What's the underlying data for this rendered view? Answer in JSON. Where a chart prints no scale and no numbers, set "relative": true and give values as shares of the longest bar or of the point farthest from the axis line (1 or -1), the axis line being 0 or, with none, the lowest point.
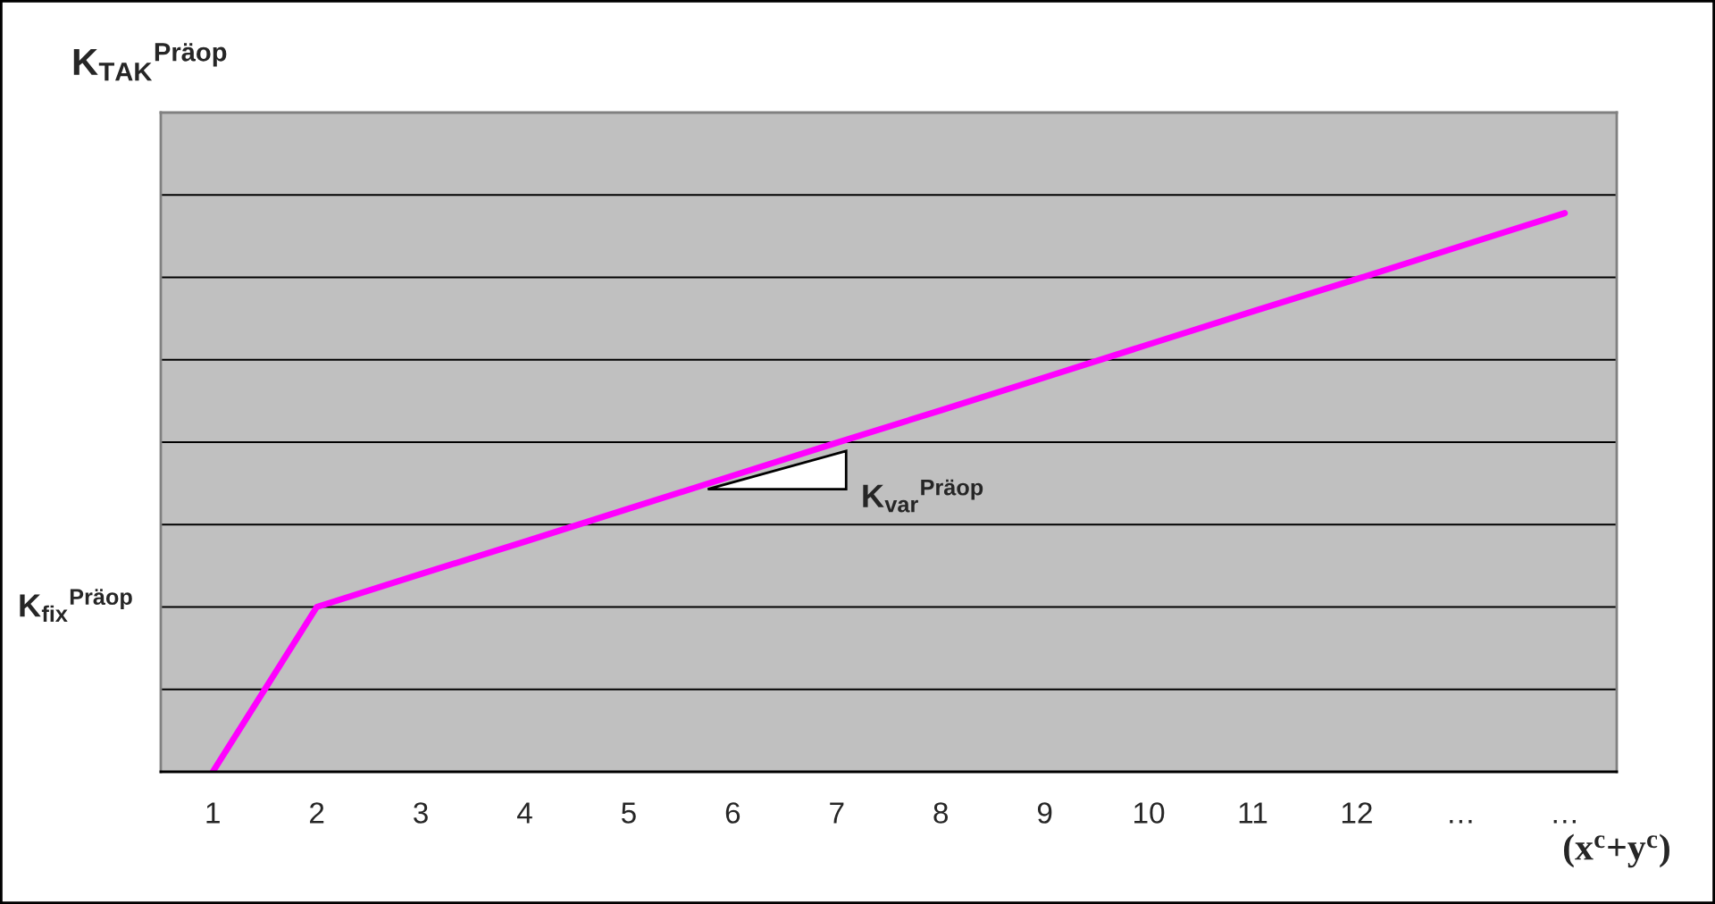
{
  "chart_data": {
    "type": "line",
    "relative": true,
    "ylabel": "K$_{TAK}$$^{Präop}$",
    "xlabel": "(x$^{c}$+y$^{c}$)",
    "categories": [
      "1",
      "2",
      "3",
      "4",
      "5",
      "6",
      "7",
      "8",
      "9",
      "10",
      "11",
      "12",
      "…",
      "…"
    ],
    "series": [
      {
        "color": "#ff00ff",
        "values": [
          0,
          0.295,
          0.354,
          0.412,
          0.471,
          0.53,
          0.589,
          0.647,
          0.706,
          0.765,
          0.824,
          0.882,
          0.941,
          1.0
        ]
      }
    ],
    "annotations": [
      "K$_{fix}$$^{Präop}$",
      {
        "text": "K$_{var}$$^{Präop}$",
        "x": "7",
        "y": 0.589
      }
    ],
    "grid": "y",
    "legend": false,
    "marker": "none",
    "line_style": "solid"
  }
}
